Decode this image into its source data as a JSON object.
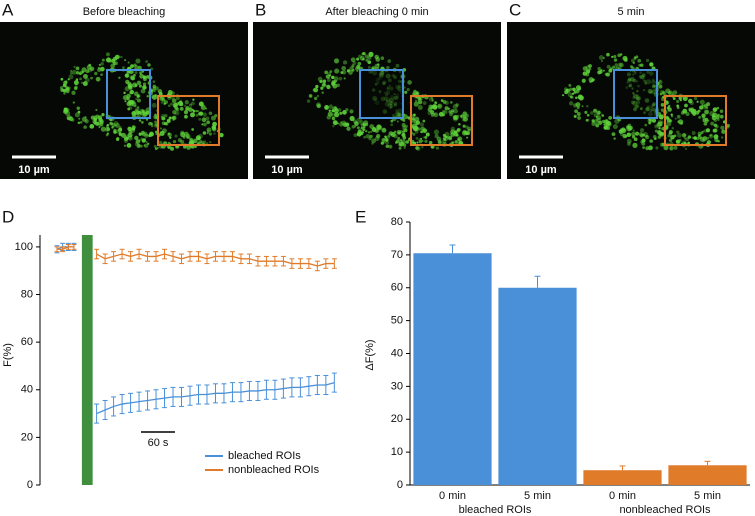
{
  "images": [
    {
      "letter": "A",
      "caption": "Before bleaching",
      "scale_bar": "10 µm"
    },
    {
      "letter": "B",
      "caption": "After bleaching 0 min",
      "scale_bar": "10 µm"
    },
    {
      "letter": "C",
      "caption": "5 min",
      "scale_bar": "10 µm"
    }
  ],
  "chart_data": [
    {
      "type": "line",
      "letter": "D",
      "ylabel": "F(%)",
      "x": [
        0,
        10,
        20,
        30,
        50,
        70,
        85,
        100,
        115,
        130,
        145,
        160,
        175,
        190,
        205,
        220,
        235,
        250,
        265,
        280,
        295,
        310,
        325,
        340,
        355,
        370,
        385,
        400,
        415,
        430,
        445,
        460,
        475,
        490
      ],
      "xlim": [
        -30,
        500
      ],
      "ylim": [
        0,
        105
      ],
      "yticks": [
        0,
        20,
        40,
        60,
        80,
        100
      ],
      "bleach_band": {
        "x": [
          44,
          63
        ],
        "top": 105,
        "color": "#3f8f3f"
      },
      "scale_bar": {
        "label": "60 s",
        "length": 60
      },
      "legend": "bottom-right",
      "series": [
        {
          "name": "bleached ROIs",
          "color": "#4a90d9",
          "values": [
            99,
            100,
            100,
            100,
            null,
            30,
            31.5,
            33,
            34,
            34.5,
            35,
            35.5,
            36,
            36.5,
            37,
            37,
            37.5,
            38,
            38,
            38.5,
            38.5,
            39,
            39,
            39.5,
            39.5,
            40,
            40,
            40.5,
            41,
            41,
            41.5,
            42,
            42,
            43
          ],
          "errors": [
            1.5,
            1.5,
            1.5,
            1.5,
            null,
            4,
            4,
            4,
            4,
            4,
            4,
            4,
            4,
            4,
            4,
            4,
            4,
            4,
            4,
            4,
            4,
            4,
            4,
            4,
            4,
            4,
            4,
            4,
            4,
            4,
            4,
            4,
            4,
            4
          ]
        },
        {
          "name": "nonbleached ROIs",
          "color": "#e07b2a",
          "values": [
            99,
            99,
            100,
            100,
            null,
            97,
            95,
            96,
            97,
            96,
            97,
            96,
            96,
            97,
            96,
            95,
            96,
            96,
            95,
            96,
            96,
            96,
            95,
            95,
            94,
            94,
            94,
            94,
            93,
            93,
            93,
            92,
            93,
            93
          ],
          "errors": [
            1,
            1,
            1,
            1,
            null,
            2,
            2,
            2,
            2,
            2,
            2,
            2,
            2,
            2,
            2,
            2,
            2,
            2,
            2,
            2,
            2,
            2,
            2,
            2,
            2,
            2,
            2,
            2,
            2,
            2,
            2,
            2,
            2,
            2
          ]
        }
      ]
    },
    {
      "type": "bar",
      "letter": "E",
      "ylabel": "ΔF(%)",
      "categories": [
        "0 min",
        "5 min",
        "0 min",
        "5 min"
      ],
      "groups": [
        "bleached ROIs",
        "nonbleached ROIs"
      ],
      "values": [
        70.5,
        60,
        4.5,
        6
      ],
      "errors": [
        2.5,
        3.5,
        1.3,
        1.2
      ],
      "colors": [
        "#4a90d9",
        "#4a90d9",
        "#e07b2a",
        "#e07b2a"
      ],
      "ylim": [
        0,
        80
      ],
      "yticks": [
        0,
        10,
        20,
        30,
        40,
        50,
        60,
        70,
        80
      ]
    }
  ]
}
